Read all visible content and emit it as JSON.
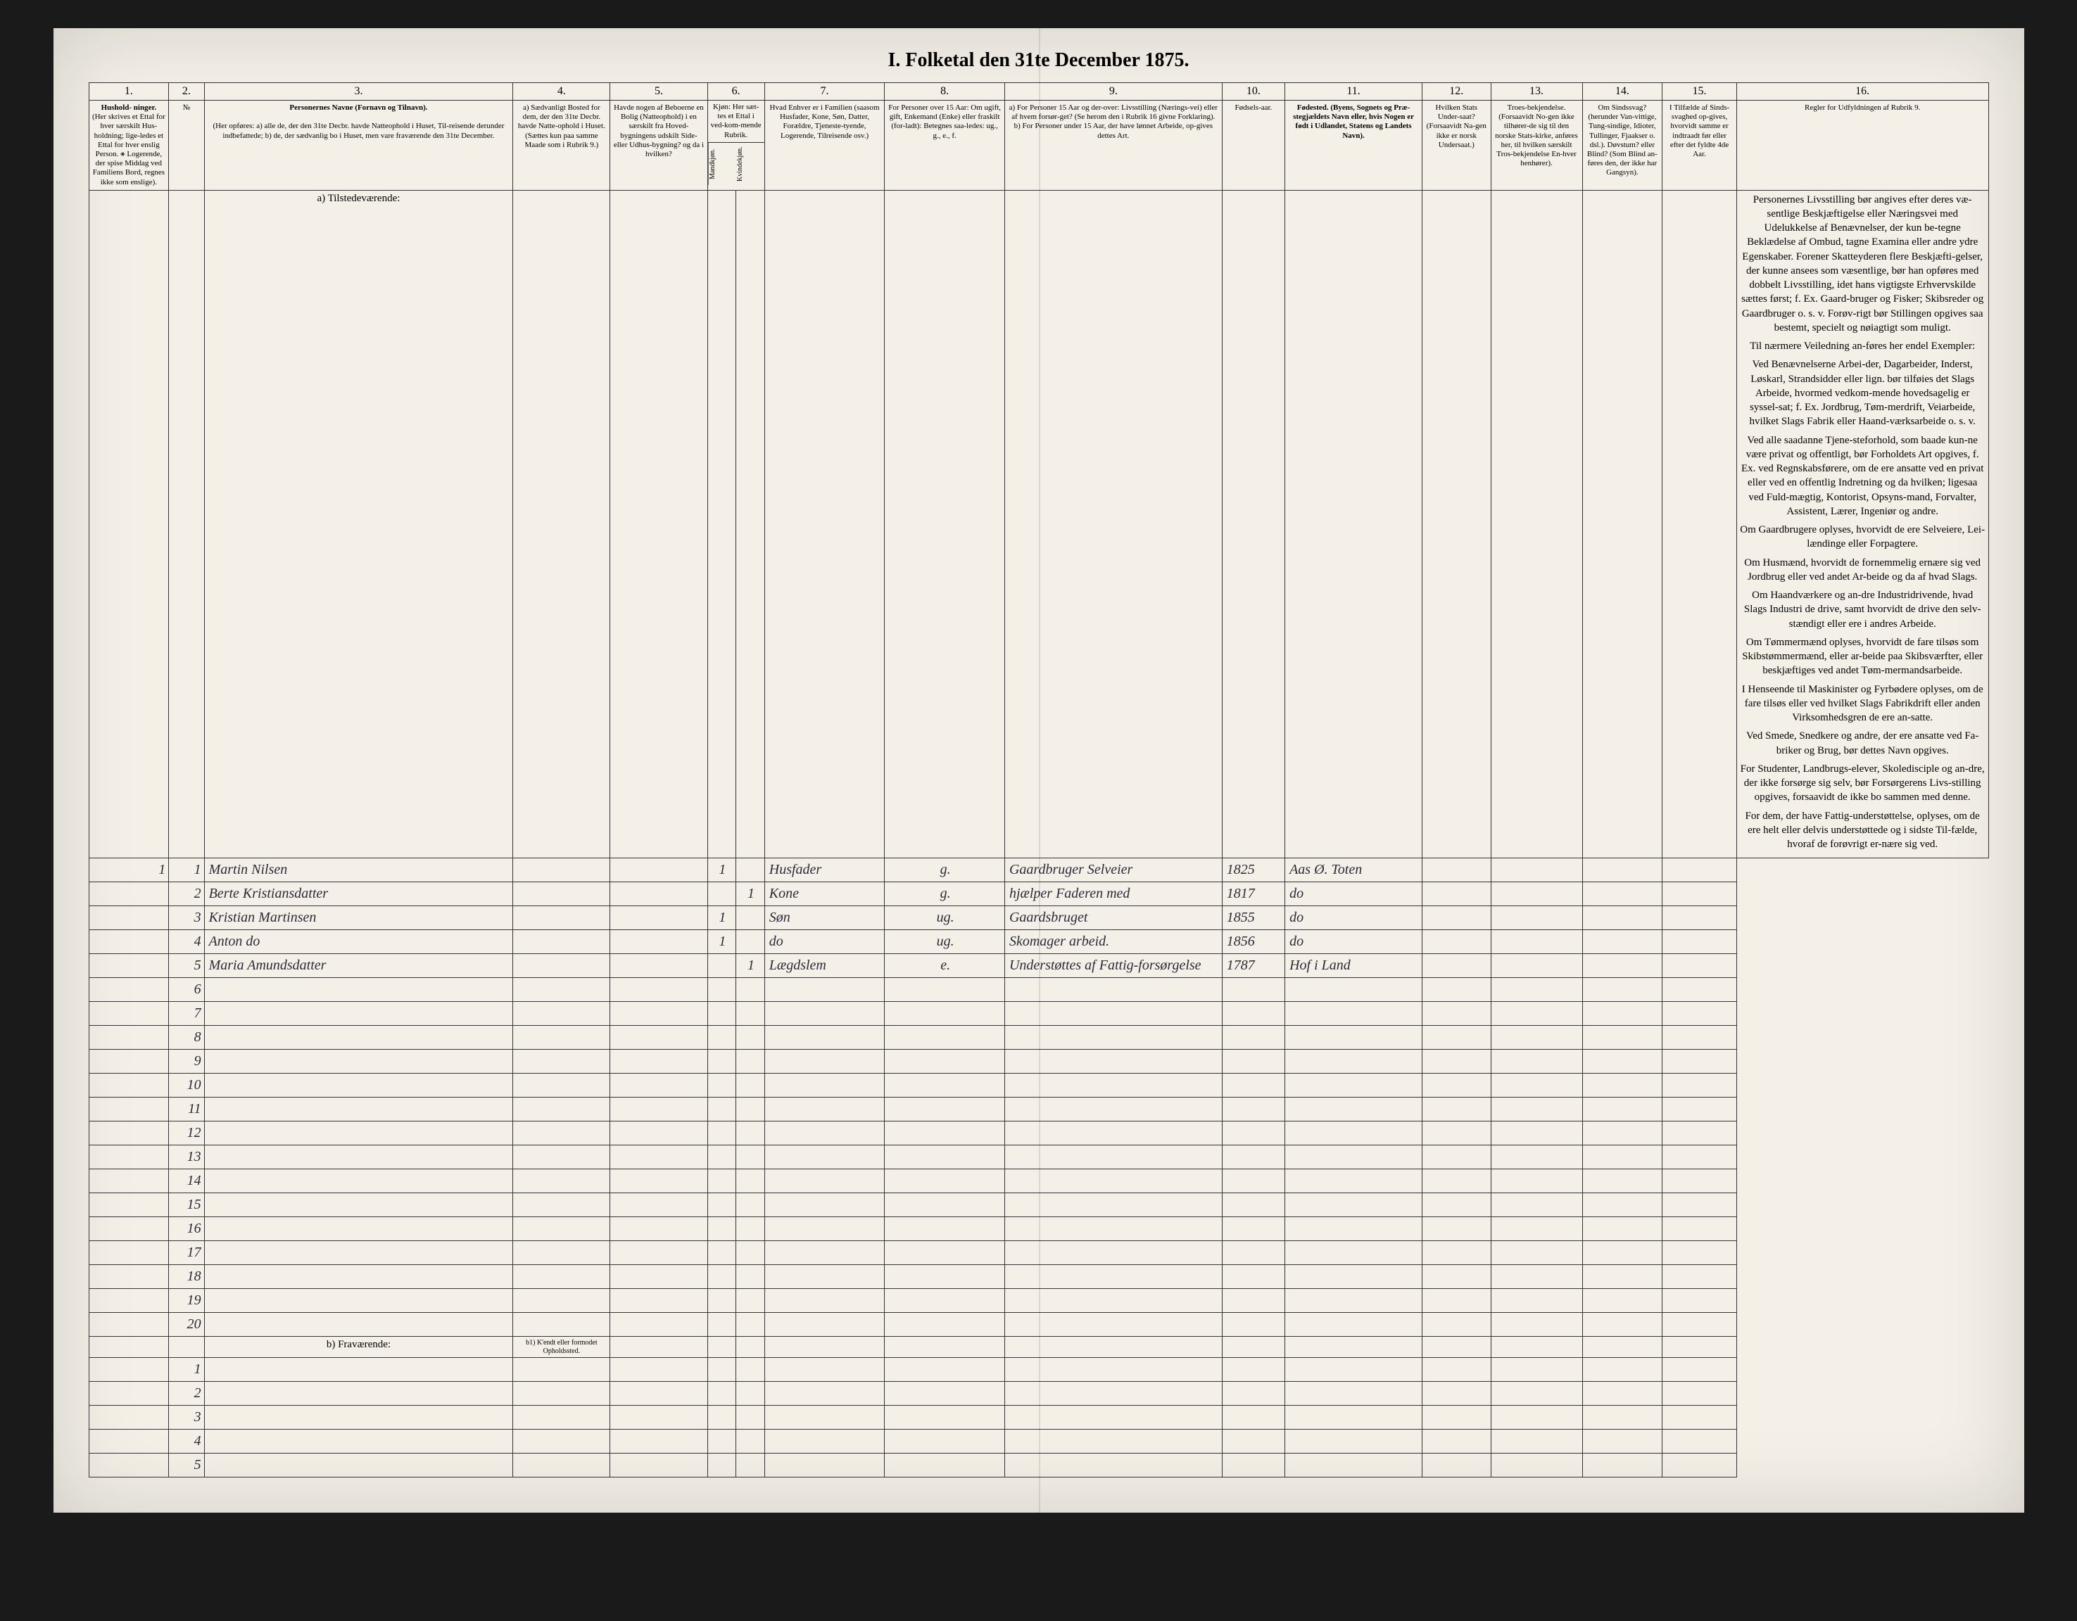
{
  "title": "I. Folketal   den 31te December 1875.",
  "columns": {
    "nums": [
      "1.",
      "2.",
      "3.",
      "4.",
      "5.",
      "6.",
      "7.",
      "8.",
      "9.",
      "10.",
      "11.",
      "12.",
      "13.",
      "14.",
      "15.",
      "16."
    ],
    "h1": {
      "title": "Hushold-\nninger.",
      "desc": "(Her skrives et Ettal for hver særskilt Hus-holdning; lige-ledes et Ettal for hver enslig Person.\n⚹ Logerende, der spise Middag ved Familiens Bord, regnes ikke som enslige)."
    },
    "h2": "№",
    "h3": {
      "title": "Personernes Navne (Fornavn og Tilnavn).",
      "desc": "(Her opføres:\na) alle de, der den 31te Decbr. havde Natteophold i Huset, Til-reisende derunder indbefattede;\nb) de, der sædvanlig bo i Huset, men vare fraværende den 31te December."
    },
    "h4": "a) Sædvanligt Bosted for dem, der den 31te Decbr. havde Natte-ophold i Huset. (Sættes kun paa samme Maade som i Rubrik 9.)",
    "h5": "Havde nogen af Beboerne en Bolig (Natteophold) i en særskilt fra Hoved-bygningens udskilt Side- eller Udhus-bygning? og da i hvilken?",
    "h6": {
      "title": "Kjøn: Her sæt-tes et Ettal i ved-kom-mende Rubrik.",
      "m": "Mandkjøn.",
      "k": "Kvindekjøn."
    },
    "h7": "Hvad Enhver er i Familien\n(saasom Husfader, Kone, Søn, Datter, Forældre, Tjeneste-tyende, Logerende, Tilreisende osv.)",
    "h8": "For Personer over 15 Aar: Om ugift, gift, Enkemand (Enke) eller fraskilt (for-ladt): Betegnes saa-ledes: ug., g., e., f.",
    "h9": "a) For Personer 15 Aar og der-over: Livsstilling (Nærings-vei) eller af hvem forsør-get? (Se herom den i Rubrik 16 givne Forklaring).\nb) For Personer under 15 Aar, der have lønnet Arbeide, op-gives dettes Art.",
    "h10": "Fødsels-aar.",
    "h11": "Fødested.\n(Byens, Sognets og Præ-stegjældets Navn eller, hvis Nogen er født i Udlandet, Statens og Landets Navn).",
    "h12": "Hvilken Stats Under-saat?\n(Forsaavidt Na-gen ikke er norsk Undersaat.)",
    "h13": "Troes-bekjendelse.\n(Forsaavidt No-gen ikke tilhører-de sig til den norske Stats-kirke, anføres her, til hvilken særskilt Tros-bekjendelse En-hver henhører).",
    "h14": "Om Sindssvag? (herunder Van-vittige, Tung-sindige, Idioter, Tullinger, Fjaakser o. dsl.). Døvstum? eller Blind? (Som Blind an-føres den, der ikke har Gangsyn).",
    "h15": "I Tilfælde af Sinds-svaghed op-gives, hvorvidt samme er indtraadt før eller efter det fyldte 4de Aar.",
    "h16_title": "Regler for Udfyldningen\naf\nRubrik 9."
  },
  "section_a": "a) Tilstedeværende:",
  "section_b": "b) Fraværende:",
  "section_b_sub": "b1) K'endt eller formodet Opholdssted.",
  "rows": [
    {
      "hush": "1",
      "n": "1",
      "name": "Martin Nilsen",
      "m": "1",
      "k": "",
      "fam": "Husfader",
      "civ": "g.",
      "occ": "Gaardbruger Selveier",
      "year": "1825",
      "place": "Aas Ø. Toten"
    },
    {
      "hush": "",
      "n": "2",
      "name": "Berte Kristiansdatter",
      "m": "",
      "k": "1",
      "fam": "Kone",
      "civ": "g.",
      "occ": "hjælper Faderen med",
      "year": "1817",
      "place": "do"
    },
    {
      "hush": "",
      "n": "3",
      "name": "Kristian Martinsen",
      "m": "1",
      "k": "",
      "fam": "Søn",
      "civ": "ug.",
      "occ": "Gaardsbruget",
      "year": "1855",
      "place": "do"
    },
    {
      "hush": "",
      "n": "4",
      "name": "Anton         do",
      "m": "1",
      "k": "",
      "fam": "do",
      "civ": "ug.",
      "occ": "Skomager arbeid.",
      "year": "1856",
      "place": "do"
    },
    {
      "hush": "",
      "n": "5",
      "name": "Maria Amundsdatter",
      "m": "",
      "k": "1",
      "fam": "Lægdslem",
      "civ": "e.",
      "occ": "Understøttes af Fattig-forsørgelse",
      "year": "1787",
      "place": "Hof i Land"
    }
  ],
  "instructions_paras": [
    "Personernes Livsstilling bør angives efter deres væ-sentlige Beskjæftigelse eller Næringsvei med Udelukkelse af Benævnelser, der kun be-tegne Beklædelse af Ombud, tagne Examina eller andre ydre Egenskaber. Forener Skatteyderen flere Beskjæfti-gelser, der kunne ansees som væsentlige, bør han opføres med dobbelt Livsstilling, idet hans vigtigste Erhvervskilde sættes først; f. Ex. Gaard-bruger og Fisker; Skibsreder og Gaardbruger o. s. v. Forøv-rigt bør Stillingen opgives saa bestemt, specielt og nøiagtigt som muligt.",
    "Til nærmere Veiledning an-føres her endel Exempler:",
    "Ved Benævnelserne Arbei-der, Dagarbeider, Inderst, Løskarl, Strandsidder eller lign. bør tilføies det Slags Arbeide, hvormed vedkom-mende hovedsagelig er syssel-sat; f. Ex. Jordbrug, Tøm-merdrift, Veiarbeide, hvilket Slags Fabrik eller Haand-værksarbeide o. s. v.",
    "Ved alle saadanne Tjene-steforhold, som baade kun-ne være privat og offentligt, bør Forholdets Art opgives, f. Ex. ved Regnskabsførere, om de ere ansatte ved en privat eller ved en offentlig Indretning og da hvilken; ligesaa ved Fuld-mægtig, Kontorist, Opsyns-mand, Forvalter, Assistent, Lærer, Ingeniør og andre.",
    "Om Gaardbrugere oplyses, hvorvidt de ere Selveiere, Lei-lændinge eller Forpagtere.",
    "Om Husmænd, hvorvidt de fornemmelig ernære sig ved Jordbrug eller ved andet Ar-beide og da af hvad Slags.",
    "Om Haandværkere og an-dre Industridrivende, hvad Slags Industri de drive, samt hvorvidt de drive den selv-stændigt eller ere i andres Arbeide.",
    "Om Tømmermænd oplyses, hvorvidt de fare tilsøs som Skibstømmermænd, eller ar-beide paa Skibsværfter, eller beskjæftiges ved andet Tøm-mermandsarbeide.",
    "I Henseende til Maskinister og Fyrbødere oplyses, om de fare tilsøs eller ved hvilket Slags Fabrikdrift eller anden Virksomhedsgren de ere an-satte.",
    "Ved Smede, Snedkere og andre, der ere ansatte ved Fa-briker og Brug, bør dettes Navn opgives.",
    "For Studenter, Landbrugs-elever, Skoledisciple og an-dre, der ikke forsørge sig selv, bør Forsørgerens Livs-stilling opgives, forsaavidt de ikke bo sammen med denne.",
    "For dem, der have Fattig-understøttelse, oplyses, om de ere helt eller delvis understøttede og i sidste Til-fælde, hvoraf de forøvrigt er-nære sig ved."
  ]
}
